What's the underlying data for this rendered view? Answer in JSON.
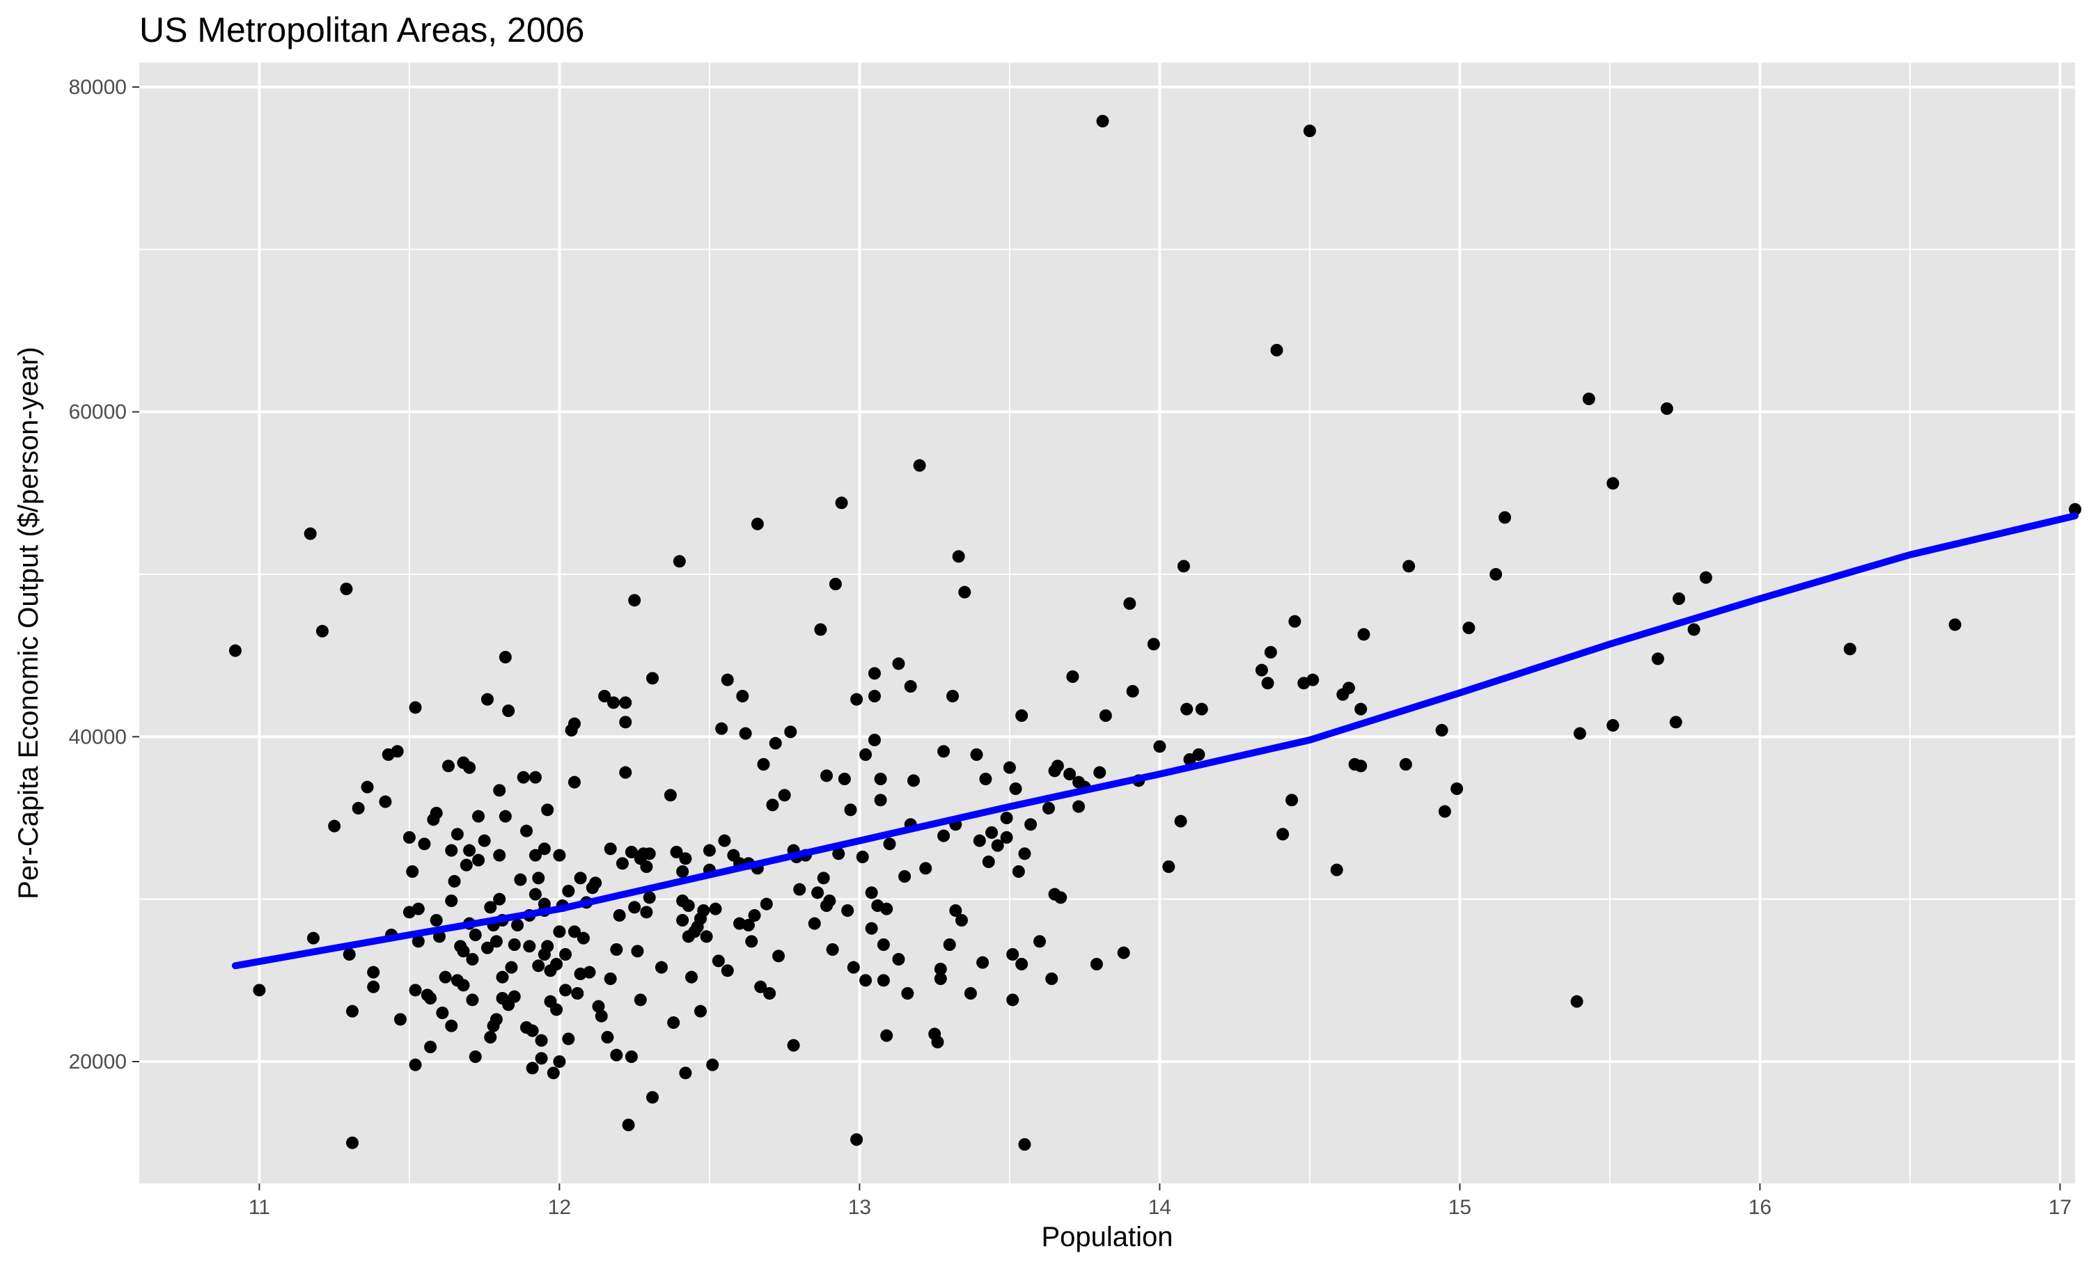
{
  "chart_data": {
    "type": "scatter",
    "title": "US Metropolitan Areas, 2006",
    "xlabel": "Population",
    "ylabel": "Per-Capita Economic Output ($/person-year)",
    "xlim": [
      10.6,
      17.05
    ],
    "ylim": [
      12500,
      81500
    ],
    "x_ticks": [
      11,
      12,
      13,
      14,
      15,
      16,
      17
    ],
    "x_tick_labels": [
      "11",
      "12",
      "13",
      "14",
      "15",
      "16",
      "17"
    ],
    "y_ticks": [
      20000,
      40000,
      60000,
      80000
    ],
    "y_tick_labels": [
      "20000",
      "40000",
      "60000",
      "80000"
    ],
    "grid": true,
    "legend": "none",
    "colors": {
      "panel": "#e5e5e5",
      "grid": "#ffffff",
      "points": "#000000",
      "smooth_line": "#0000ff"
    },
    "points": [
      [
        10.92,
        45300
      ],
      [
        11.0,
        24400
      ],
      [
        11.17,
        52500
      ],
      [
        11.18,
        27600
      ],
      [
        11.21,
        46500
      ],
      [
        11.25,
        34500
      ],
      [
        11.29,
        49100
      ],
      [
        11.3,
        26600
      ],
      [
        11.31,
        23100
      ],
      [
        11.31,
        15000
      ],
      [
        11.33,
        35600
      ],
      [
        11.36,
        36900
      ],
      [
        11.38,
        25500
      ],
      [
        11.38,
        24600
      ],
      [
        11.42,
        36000
      ],
      [
        11.43,
        38900
      ],
      [
        11.44,
        27800
      ],
      [
        11.46,
        39100
      ],
      [
        11.47,
        22600
      ],
      [
        11.5,
        33800
      ],
      [
        11.5,
        29200
      ],
      [
        11.51,
        31700
      ],
      [
        11.52,
        41800
      ],
      [
        11.52,
        24400
      ],
      [
        11.52,
        19800
      ],
      [
        11.53,
        27400
      ],
      [
        11.53,
        29400
      ],
      [
        11.55,
        33400
      ],
      [
        11.56,
        24100
      ],
      [
        11.57,
        20900
      ],
      [
        11.57,
        23900
      ],
      [
        11.58,
        34900
      ],
      [
        11.59,
        35300
      ],
      [
        11.59,
        28700
      ],
      [
        11.6,
        27700
      ],
      [
        11.61,
        23000
      ],
      [
        11.62,
        25200
      ],
      [
        11.63,
        38200
      ],
      [
        11.64,
        22200
      ],
      [
        11.64,
        29900
      ],
      [
        11.64,
        33000
      ],
      [
        11.65,
        31100
      ],
      [
        11.66,
        34000
      ],
      [
        11.66,
        25000
      ],
      [
        11.67,
        27100
      ],
      [
        11.68,
        38400
      ],
      [
        11.68,
        26800
      ],
      [
        11.68,
        24700
      ],
      [
        11.69,
        32100
      ],
      [
        11.7,
        38100
      ],
      [
        11.7,
        28500
      ],
      [
        11.7,
        33000
      ],
      [
        11.71,
        23800
      ],
      [
        11.71,
        26300
      ],
      [
        11.72,
        27800
      ],
      [
        11.72,
        20300
      ],
      [
        11.73,
        35100
      ],
      [
        11.73,
        32400
      ],
      [
        11.75,
        33600
      ],
      [
        11.76,
        42300
      ],
      [
        11.76,
        27000
      ],
      [
        11.77,
        21500
      ],
      [
        11.77,
        29500
      ],
      [
        11.78,
        22200
      ],
      [
        11.78,
        28400
      ],
      [
        11.79,
        27400
      ],
      [
        11.79,
        22600
      ],
      [
        11.8,
        36700
      ],
      [
        11.8,
        32700
      ],
      [
        11.8,
        30000
      ],
      [
        11.81,
        23900
      ],
      [
        11.81,
        25200
      ],
      [
        11.81,
        28700
      ],
      [
        11.82,
        44900
      ],
      [
        11.82,
        35100
      ],
      [
        11.83,
        41600
      ],
      [
        11.83,
        23500
      ],
      [
        11.84,
        25800
      ],
      [
        11.85,
        24000
      ],
      [
        11.85,
        27200
      ],
      [
        11.86,
        28400
      ],
      [
        11.87,
        31200
      ],
      [
        11.88,
        37500
      ],
      [
        11.89,
        34200
      ],
      [
        11.89,
        22100
      ],
      [
        11.9,
        29000
      ],
      [
        11.9,
        27100
      ],
      [
        11.91,
        21900
      ],
      [
        11.91,
        19600
      ],
      [
        11.92,
        37500
      ],
      [
        11.92,
        30300
      ],
      [
        11.92,
        32700
      ],
      [
        11.93,
        25900
      ],
      [
        11.93,
        31300
      ],
      [
        11.94,
        20200
      ],
      [
        11.94,
        21300
      ],
      [
        11.95,
        33100
      ],
      [
        11.95,
        29700
      ],
      [
        11.95,
        29300
      ],
      [
        11.95,
        26600
      ],
      [
        11.96,
        35500
      ],
      [
        11.96,
        27100
      ],
      [
        11.97,
        23700
      ],
      [
        11.97,
        25600
      ],
      [
        11.98,
        19300
      ],
      [
        11.99,
        26000
      ],
      [
        11.99,
        23200
      ],
      [
        12.0,
        32700
      ],
      [
        12.0,
        20000
      ],
      [
        12.0,
        28000
      ],
      [
        12.01,
        29600
      ],
      [
        12.02,
        26600
      ],
      [
        12.02,
        24400
      ],
      [
        12.03,
        30500
      ],
      [
        12.03,
        21400
      ],
      [
        12.04,
        40400
      ],
      [
        12.05,
        40800
      ],
      [
        12.05,
        28000
      ],
      [
        12.05,
        37200
      ],
      [
        12.06,
        24200
      ],
      [
        12.07,
        25400
      ],
      [
        12.07,
        31300
      ],
      [
        12.08,
        27600
      ],
      [
        12.09,
        29800
      ],
      [
        12.1,
        25500
      ],
      [
        12.11,
        30700
      ],
      [
        12.12,
        31000
      ],
      [
        12.13,
        23400
      ],
      [
        12.14,
        22800
      ],
      [
        12.15,
        42500
      ],
      [
        12.16,
        21500
      ],
      [
        12.17,
        25100
      ],
      [
        12.17,
        33100
      ],
      [
        12.18,
        42100
      ],
      [
        12.19,
        26900
      ],
      [
        12.19,
        20400
      ],
      [
        12.2,
        29000
      ],
      [
        12.21,
        32200
      ],
      [
        12.22,
        40900
      ],
      [
        12.22,
        37800
      ],
      [
        12.22,
        42100
      ],
      [
        12.23,
        16100
      ],
      [
        12.24,
        20300
      ],
      [
        12.24,
        32900
      ],
      [
        12.25,
        48400
      ],
      [
        12.25,
        29500
      ],
      [
        12.26,
        26800
      ],
      [
        12.27,
        23800
      ],
      [
        12.27,
        32500
      ],
      [
        12.28,
        32800
      ],
      [
        12.29,
        29200
      ],
      [
        12.29,
        32000
      ],
      [
        12.3,
        30100
      ],
      [
        12.3,
        32800
      ],
      [
        12.31,
        43600
      ],
      [
        12.31,
        17800
      ],
      [
        12.34,
        25800
      ],
      [
        12.37,
        36400
      ],
      [
        12.38,
        22400
      ],
      [
        12.39,
        32900
      ],
      [
        12.4,
        50800
      ],
      [
        12.41,
        29900
      ],
      [
        12.41,
        28700
      ],
      [
        12.41,
        31700
      ],
      [
        12.42,
        19300
      ],
      [
        12.42,
        32500
      ],
      [
        12.43,
        29600
      ],
      [
        12.43,
        27700
      ],
      [
        12.44,
        25200
      ],
      [
        12.45,
        28000
      ],
      [
        12.46,
        28300
      ],
      [
        12.47,
        28800
      ],
      [
        12.47,
        23100
      ],
      [
        12.48,
        29300
      ],
      [
        12.49,
        27700
      ],
      [
        12.5,
        31800
      ],
      [
        12.5,
        33000
      ],
      [
        12.51,
        19800
      ],
      [
        12.52,
        29400
      ],
      [
        12.53,
        26200
      ],
      [
        12.54,
        40500
      ],
      [
        12.55,
        33600
      ],
      [
        12.56,
        43500
      ],
      [
        12.56,
        25600
      ],
      [
        12.58,
        32700
      ],
      [
        12.6,
        28500
      ],
      [
        12.6,
        32200
      ],
      [
        12.61,
        42500
      ],
      [
        12.62,
        40200
      ],
      [
        12.63,
        32200
      ],
      [
        12.63,
        28400
      ],
      [
        12.64,
        27400
      ],
      [
        12.65,
        29000
      ],
      [
        12.66,
        31900
      ],
      [
        12.66,
        53100
      ],
      [
        12.67,
        24600
      ],
      [
        12.68,
        38300
      ],
      [
        12.69,
        29700
      ],
      [
        12.7,
        24200
      ],
      [
        12.71,
        35800
      ],
      [
        12.72,
        39600
      ],
      [
        12.73,
        26500
      ],
      [
        12.75,
        36400
      ],
      [
        12.77,
        40300
      ],
      [
        12.78,
        21000
      ],
      [
        12.78,
        33000
      ],
      [
        12.79,
        32600
      ],
      [
        12.8,
        30600
      ],
      [
        12.82,
        32700
      ],
      [
        12.85,
        28500
      ],
      [
        12.86,
        30400
      ],
      [
        12.87,
        46600
      ],
      [
        12.88,
        31300
      ],
      [
        12.89,
        37600
      ],
      [
        12.89,
        29600
      ],
      [
        12.9,
        29900
      ],
      [
        12.91,
        26900
      ],
      [
        12.92,
        49400
      ],
      [
        12.93,
        32800
      ],
      [
        12.94,
        54400
      ],
      [
        12.95,
        37400
      ],
      [
        12.96,
        29300
      ],
      [
        12.97,
        35500
      ],
      [
        12.98,
        25800
      ],
      [
        12.99,
        15200
      ],
      [
        12.99,
        42300
      ],
      [
        13.01,
        32600
      ],
      [
        13.02,
        38900
      ],
      [
        13.02,
        25000
      ],
      [
        13.04,
        30400
      ],
      [
        13.04,
        28200
      ],
      [
        13.05,
        42500
      ],
      [
        13.05,
        39800
      ],
      [
        13.05,
        43900
      ],
      [
        13.06,
        29600
      ],
      [
        13.07,
        37400
      ],
      [
        13.07,
        36100
      ],
      [
        13.08,
        27200
      ],
      [
        13.08,
        25000
      ],
      [
        13.09,
        21600
      ],
      [
        13.09,
        29400
      ],
      [
        13.1,
        33400
      ],
      [
        13.13,
        44500
      ],
      [
        13.13,
        26300
      ],
      [
        13.15,
        31400
      ],
      [
        13.16,
        24200
      ],
      [
        13.17,
        43100
      ],
      [
        13.17,
        34600
      ],
      [
        13.18,
        37300
      ],
      [
        13.2,
        56700
      ],
      [
        13.22,
        31900
      ],
      [
        13.25,
        21700
      ],
      [
        13.26,
        21200
      ],
      [
        13.27,
        25700
      ],
      [
        13.27,
        25100
      ],
      [
        13.28,
        33900
      ],
      [
        13.28,
        39100
      ],
      [
        13.3,
        27200
      ],
      [
        13.31,
        42500
      ],
      [
        13.32,
        34600
      ],
      [
        13.32,
        29300
      ],
      [
        13.33,
        51100
      ],
      [
        13.34,
        28700
      ],
      [
        13.35,
        48900
      ],
      [
        13.37,
        24200
      ],
      [
        13.39,
        38900
      ],
      [
        13.4,
        33600
      ],
      [
        13.41,
        26100
      ],
      [
        13.42,
        37400
      ],
      [
        13.43,
        32300
      ],
      [
        13.44,
        34100
      ],
      [
        13.46,
        33300
      ],
      [
        13.49,
        33800
      ],
      [
        13.49,
        35000
      ],
      [
        13.5,
        38100
      ],
      [
        13.51,
        26600
      ],
      [
        13.51,
        23800
      ],
      [
        13.52,
        36800
      ],
      [
        13.53,
        31700
      ],
      [
        13.54,
        41300
      ],
      [
        13.54,
        26000
      ],
      [
        13.55,
        14900
      ],
      [
        13.55,
        32800
      ],
      [
        13.57,
        34600
      ],
      [
        13.6,
        27400
      ],
      [
        13.63,
        35600
      ],
      [
        13.64,
        25100
      ],
      [
        13.65,
        37900
      ],
      [
        13.65,
        30300
      ],
      [
        13.66,
        38200
      ],
      [
        13.67,
        30100
      ],
      [
        13.7,
        37700
      ],
      [
        13.71,
        43700
      ],
      [
        13.73,
        35700
      ],
      [
        13.73,
        37200
      ],
      [
        13.75,
        36900
      ],
      [
        13.79,
        26000
      ],
      [
        13.8,
        37800
      ],
      [
        13.81,
        77900
      ],
      [
        13.82,
        41300
      ],
      [
        13.88,
        26700
      ],
      [
        13.9,
        48200
      ],
      [
        13.91,
        42800
      ],
      [
        13.93,
        37300
      ],
      [
        13.98,
        45700
      ],
      [
        14.0,
        39400
      ],
      [
        14.03,
        32000
      ],
      [
        14.07,
        34800
      ],
      [
        14.08,
        50500
      ],
      [
        14.09,
        41700
      ],
      [
        14.1,
        38600
      ],
      [
        14.13,
        38900
      ],
      [
        14.14,
        41700
      ],
      [
        14.34,
        44100
      ],
      [
        14.36,
        43300
      ],
      [
        14.37,
        45200
      ],
      [
        14.39,
        63800
      ],
      [
        14.41,
        34000
      ],
      [
        14.44,
        36100
      ],
      [
        14.45,
        47100
      ],
      [
        14.48,
        43300
      ],
      [
        14.5,
        77300
      ],
      [
        14.51,
        43500
      ],
      [
        14.59,
        31800
      ],
      [
        14.61,
        42600
      ],
      [
        14.63,
        43000
      ],
      [
        14.65,
        38300
      ],
      [
        14.67,
        41700
      ],
      [
        14.67,
        38200
      ],
      [
        14.68,
        46300
      ],
      [
        14.82,
        38300
      ],
      [
        14.83,
        50500
      ],
      [
        14.94,
        40400
      ],
      [
        14.95,
        35400
      ],
      [
        14.99,
        36800
      ],
      [
        15.03,
        46700
      ],
      [
        15.12,
        50000
      ],
      [
        15.15,
        53500
      ],
      [
        15.39,
        23700
      ],
      [
        15.4,
        40200
      ],
      [
        15.43,
        60800
      ],
      [
        15.51,
        55600
      ],
      [
        15.51,
        40700
      ],
      [
        15.66,
        44800
      ],
      [
        15.69,
        60200
      ],
      [
        15.72,
        40900
      ],
      [
        15.73,
        48500
      ],
      [
        15.78,
        46600
      ],
      [
        15.82,
        49800
      ],
      [
        16.3,
        45400
      ],
      [
        16.65,
        46900
      ],
      [
        17.05,
        54000
      ]
    ],
    "smooth_line": [
      [
        10.92,
        25900
      ],
      [
        11.5,
        27800
      ],
      [
        12.0,
        29400
      ],
      [
        12.5,
        31500
      ],
      [
        13.0,
        33600
      ],
      [
        13.5,
        35700
      ],
      [
        14.0,
        37700
      ],
      [
        14.5,
        39800
      ],
      [
        15.0,
        42700
      ],
      [
        15.5,
        45700
      ],
      [
        16.0,
        48500
      ],
      [
        16.5,
        51200
      ],
      [
        17.05,
        53600
      ]
    ]
  }
}
